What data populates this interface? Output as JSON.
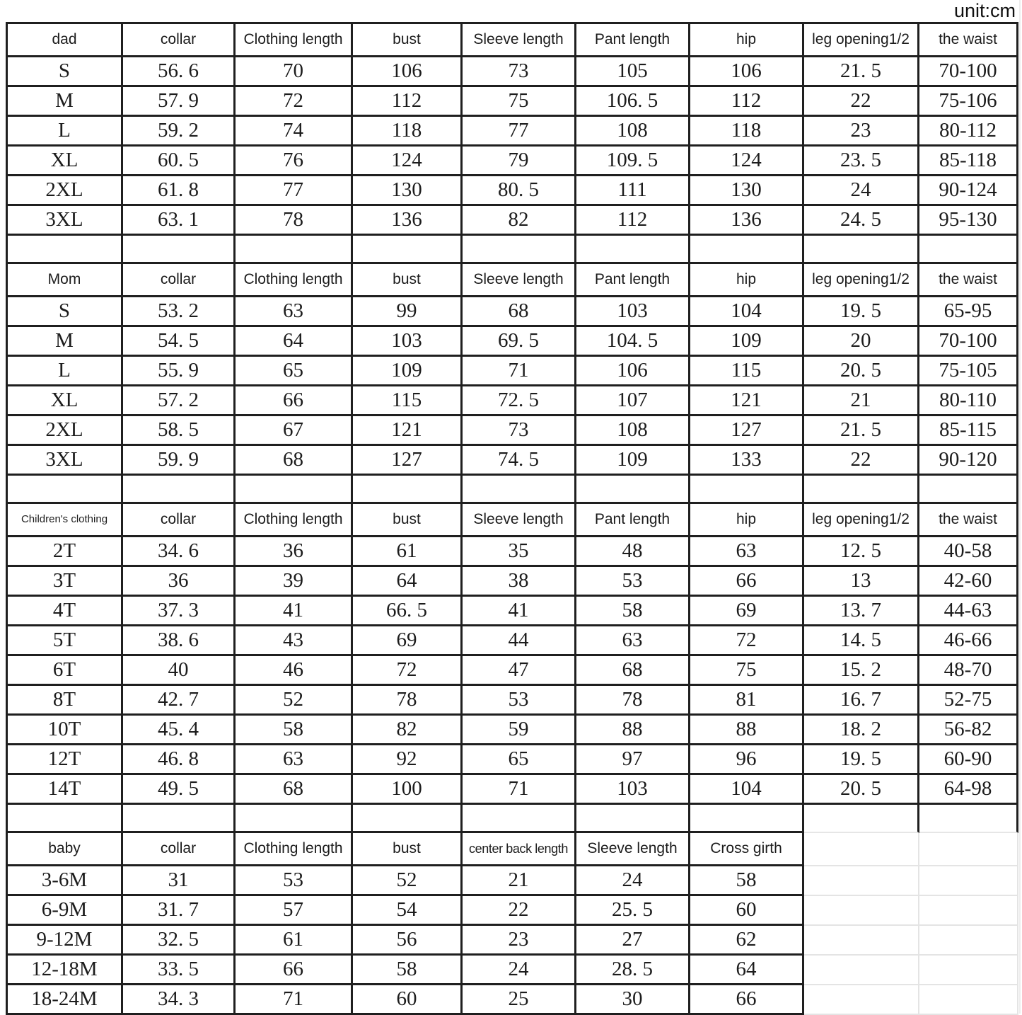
{
  "unit_label": "unit:cm",
  "chart_data": [
    {
      "type": "table",
      "name": "dad",
      "columns": [
        "dad",
        "collar",
        "Clothing length",
        "bust",
        "Sleeve length",
        "Pant length",
        "hip",
        "leg opening1/2",
        "the waist"
      ],
      "rows": [
        [
          "S",
          "56. 6",
          "70",
          "106",
          "73",
          "105",
          "106",
          "21. 5",
          "70-100"
        ],
        [
          "M",
          "57. 9",
          "72",
          "112",
          "75",
          "106. 5",
          "112",
          "22",
          "75-106"
        ],
        [
          "L",
          "59. 2",
          "74",
          "118",
          "77",
          "108",
          "118",
          "23",
          "80-112"
        ],
        [
          "XL",
          "60. 5",
          "76",
          "124",
          "79",
          "109. 5",
          "124",
          "23. 5",
          "85-118"
        ],
        [
          "2XL",
          "61. 8",
          "77",
          "130",
          "80. 5",
          "111",
          "130",
          "24",
          "90-124"
        ],
        [
          "3XL",
          "63. 1",
          "78",
          "136",
          "82",
          "112",
          "136",
          "24. 5",
          "95-130"
        ]
      ]
    },
    {
      "type": "table",
      "name": "mom",
      "columns": [
        "Mom",
        "collar",
        "Clothing length",
        "bust",
        "Sleeve length",
        "Pant length",
        "hip",
        "leg opening1/2",
        "the waist"
      ],
      "rows": [
        [
          "S",
          "53. 2",
          "63",
          "99",
          "68",
          "103",
          "104",
          "19. 5",
          "65-95"
        ],
        [
          "M",
          "54. 5",
          "64",
          "103",
          "69. 5",
          "104. 5",
          "109",
          "20",
          "70-100"
        ],
        [
          "L",
          "55. 9",
          "65",
          "109",
          "71",
          "106",
          "115",
          "20. 5",
          "75-105"
        ],
        [
          "XL",
          "57. 2",
          "66",
          "115",
          "72. 5",
          "107",
          "121",
          "21",
          "80-110"
        ],
        [
          "2XL",
          "58. 5",
          "67",
          "121",
          "73",
          "108",
          "127",
          "21. 5",
          "85-115"
        ],
        [
          "3XL",
          "59. 9",
          "68",
          "127",
          "74. 5",
          "109",
          "133",
          "22",
          "90-120"
        ]
      ]
    },
    {
      "type": "table",
      "name": "children",
      "columns": [
        "Children's clothing",
        "collar",
        "Clothing length",
        "bust",
        "Sleeve length",
        "Pant length",
        "hip",
        "leg opening1/2",
        "the waist"
      ],
      "rows": [
        [
          "2T",
          "34. 6",
          "36",
          "61",
          "35",
          "48",
          "63",
          "12. 5",
          "40-58"
        ],
        [
          "3T",
          "36",
          "39",
          "64",
          "38",
          "53",
          "66",
          "13",
          "42-60"
        ],
        [
          "4T",
          "37. 3",
          "41",
          "66. 5",
          "41",
          "58",
          "69",
          "13. 7",
          "44-63"
        ],
        [
          "5T",
          "38. 6",
          "43",
          "69",
          "44",
          "63",
          "72",
          "14. 5",
          "46-66"
        ],
        [
          "6T",
          "40",
          "46",
          "72",
          "47",
          "68",
          "75",
          "15. 2",
          "48-70"
        ],
        [
          "8T",
          "42. 7",
          "52",
          "78",
          "53",
          "78",
          "81",
          "16. 7",
          "52-75"
        ],
        [
          "10T",
          "45. 4",
          "58",
          "82",
          "59",
          "88",
          "88",
          "18. 2",
          "56-82"
        ],
        [
          "12T",
          "46. 8",
          "63",
          "92",
          "65",
          "97",
          "96",
          "19. 5",
          "60-90"
        ],
        [
          "14T",
          "49. 5",
          "68",
          "100",
          "71",
          "103",
          "104",
          "20. 5",
          "64-98"
        ]
      ]
    },
    {
      "type": "table",
      "name": "baby",
      "columns": [
        "baby",
        "collar",
        "Clothing length",
        "bust",
        "center back length",
        "Sleeve length",
        "Cross girth"
      ],
      "rows": [
        [
          "3-6M",
          "31",
          "53",
          "52",
          "21",
          "24",
          "58"
        ],
        [
          "6-9M",
          "31. 7",
          "57",
          "54",
          "22",
          "25. 5",
          "60"
        ],
        [
          "9-12M",
          "32. 5",
          "61",
          "56",
          "23",
          "27",
          "62"
        ],
        [
          "12-18M",
          "33. 5",
          "66",
          "58",
          "24",
          "28. 5",
          "64"
        ],
        [
          "18-24M",
          "34. 3",
          "71",
          "60",
          "25",
          "30",
          "66"
        ]
      ]
    }
  ]
}
